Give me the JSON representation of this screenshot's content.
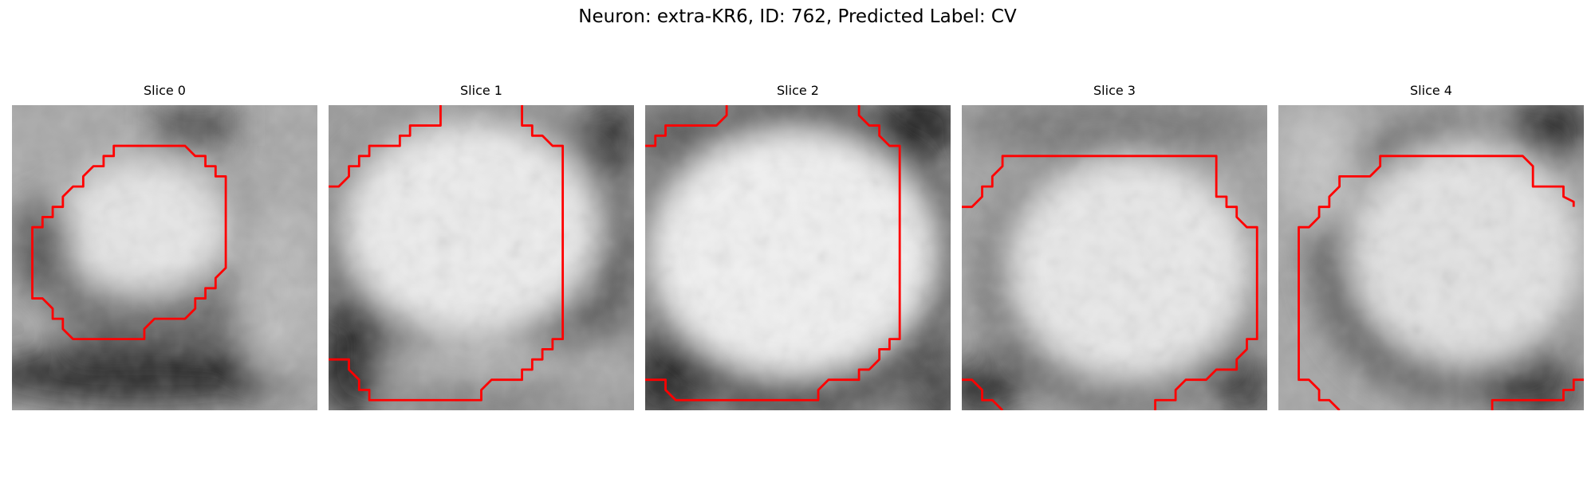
{
  "figure": {
    "title": "Neuron: extra-KR6, ID: 762, Predicted Label: CV"
  },
  "panels": [
    {
      "title": "Slice 0"
    },
    {
      "title": "Slice 1"
    },
    {
      "title": "Slice 2"
    },
    {
      "title": "Slice 3"
    },
    {
      "title": "Slice 4"
    }
  ],
  "colors": {
    "contour": "#ff0000",
    "background": "#ffffff"
  }
}
